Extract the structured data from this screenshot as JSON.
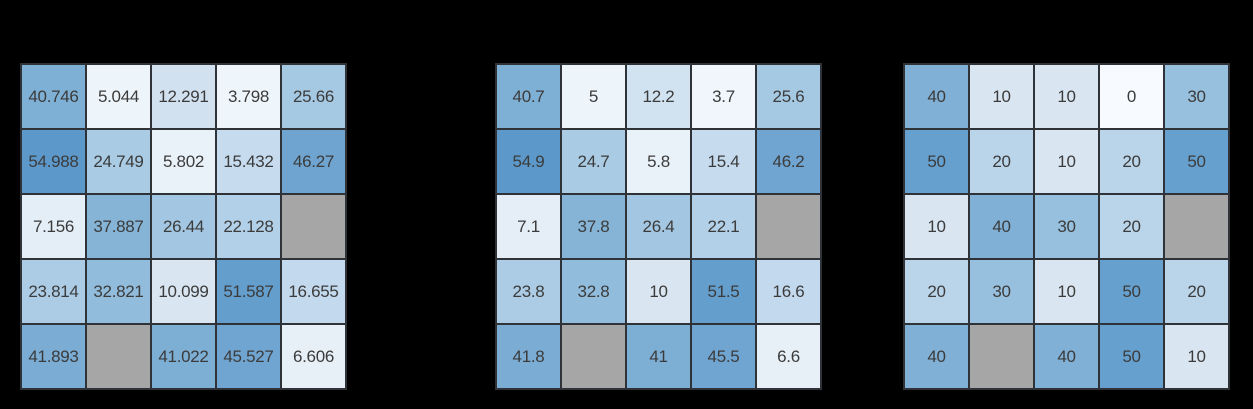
{
  "page": {
    "background": "#000000",
    "description": "Three 5x5 annotated heatmaps: original values, values truncated to one decimal, values rounded to tens; gray cells are missing values"
  },
  "style": {
    "cell_border_color": "#2f3237",
    "text_color": "#3b3b3b",
    "nan_color": "#a6a6a6"
  },
  "colormap": {
    "name": "light-blue-to-steel-blue",
    "nan_color": "#a6a6a6",
    "anchors": [
      [
        0,
        "#f7fbff"
      ],
      [
        5,
        "#edf4fa"
      ],
      [
        10,
        "#d9e6f2"
      ],
      [
        15,
        "#c7dcee"
      ],
      [
        20,
        "#bad4ea"
      ],
      [
        25,
        "#a8cae4"
      ],
      [
        30,
        "#97c0de"
      ],
      [
        35,
        "#8cb9da"
      ],
      [
        40,
        "#80b0d5"
      ],
      [
        45,
        "#72a6d1"
      ],
      [
        50,
        "#66a0ce"
      ],
      [
        55,
        "#5c99ca"
      ]
    ]
  },
  "chart_data": [
    {
      "type": "heatmap",
      "name": "heatmap-original-values",
      "rows": 5,
      "cols": 5,
      "values": [
        [
          40.746,
          5.044,
          12.291,
          3.798,
          25.66
        ],
        [
          54.988,
          24.749,
          5.802,
          15.432,
          46.27
        ],
        [
          7.156,
          37.887,
          26.44,
          22.128,
          null
        ],
        [
          23.814,
          32.821,
          10.099,
          51.587,
          16.655
        ],
        [
          41.893,
          null,
          41.022,
          45.527,
          6.606
        ]
      ],
      "labels": [
        [
          "40.746",
          "5.044",
          "12.291",
          "3.798",
          "25.66"
        ],
        [
          "54.988",
          "24.749",
          "5.802",
          "15.432",
          "46.27"
        ],
        [
          "7.156",
          "37.887",
          "26.44",
          "22.128",
          ""
        ],
        [
          "23.814",
          "32.821",
          "10.099",
          "51.587",
          "16.655"
        ],
        [
          "41.893",
          "",
          "41.022",
          "45.527",
          "6.606"
        ]
      ]
    },
    {
      "type": "heatmap",
      "name": "heatmap-one-decimal",
      "rows": 5,
      "cols": 5,
      "values": [
        [
          40.7,
          5,
          12.2,
          3.7,
          25.6
        ],
        [
          54.9,
          24.7,
          5.8,
          15.4,
          46.2
        ],
        [
          7.1,
          37.8,
          26.4,
          22.1,
          null
        ],
        [
          23.8,
          32.8,
          10,
          51.5,
          16.6
        ],
        [
          41.8,
          null,
          41,
          45.5,
          6.6
        ]
      ],
      "labels": [
        [
          "40.7",
          "5",
          "12.2",
          "3.7",
          "25.6"
        ],
        [
          "54.9",
          "24.7",
          "5.8",
          "15.4",
          "46.2"
        ],
        [
          "7.1",
          "37.8",
          "26.4",
          "22.1",
          ""
        ],
        [
          "23.8",
          "32.8",
          "10",
          "51.5",
          "16.6"
        ],
        [
          "41.8",
          "",
          "41",
          "45.5",
          "6.6"
        ]
      ]
    },
    {
      "type": "heatmap",
      "name": "heatmap-rounded-tens",
      "rows": 5,
      "cols": 5,
      "values": [
        [
          40,
          10,
          10,
          0,
          30
        ],
        [
          50,
          20,
          10,
          20,
          50
        ],
        [
          10,
          40,
          30,
          20,
          null
        ],
        [
          20,
          30,
          10,
          50,
          20
        ],
        [
          40,
          null,
          40,
          50,
          10
        ]
      ],
      "labels": [
        [
          "40",
          "10",
          "10",
          "0",
          "30"
        ],
        [
          "50",
          "20",
          "10",
          "20",
          "50"
        ],
        [
          "10",
          "40",
          "30",
          "20",
          ""
        ],
        [
          "20",
          "30",
          "10",
          "50",
          "20"
        ],
        [
          "40",
          "",
          "40",
          "50",
          "10"
        ]
      ]
    }
  ]
}
